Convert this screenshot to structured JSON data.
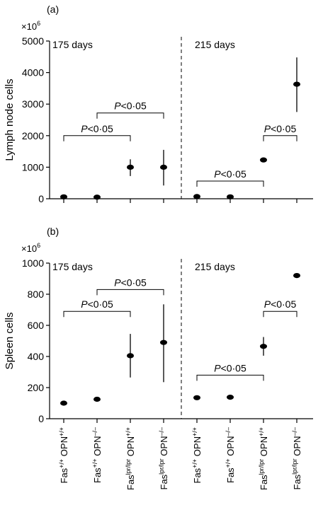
{
  "chart_data": [
    {
      "type": "scatter",
      "panel_label": "(a)",
      "multiplier": "×10",
      "multiplier_exp": "6",
      "ylabel": "Lymph node cells",
      "ylim": [
        0,
        5000
      ],
      "yticks": [
        "0",
        "1000",
        "2000",
        "3000",
        "4000",
        "5000"
      ],
      "ytick_values": [
        0,
        1000,
        2000,
        3000,
        4000,
        5000
      ],
      "groups": [
        {
          "label": "175 days",
          "points": [
            {
              "category": 0,
              "mean": 60,
              "low": 60,
              "high": 60
            },
            {
              "category": 1,
              "mean": 50,
              "low": 50,
              "high": 50
            },
            {
              "category": 2,
              "mean": 1000,
              "low": 720,
              "high": 1250
            },
            {
              "category": 3,
              "mean": 1000,
              "low": 420,
              "high": 1550
            }
          ]
        },
        {
          "label": "215 days",
          "points": [
            {
              "category": 4,
              "mean": 70,
              "low": 70,
              "high": 70
            },
            {
              "category": 5,
              "mean": 60,
              "low": 60,
              "high": 60
            },
            {
              "category": 6,
              "mean": 1230,
              "low": 1180,
              "high": 1290
            },
            {
              "category": 7,
              "mean": 3630,
              "low": 2750,
              "high": 4480
            }
          ]
        }
      ],
      "comparisons": [
        {
          "from": 0,
          "to": 2,
          "level": 2000,
          "label_p": "P",
          "label_rest": "<0·05"
        },
        {
          "from": 1,
          "to": 3,
          "level": 2720,
          "label_p": "P",
          "label_rest": "<0·05"
        },
        {
          "from": 4,
          "to": 6,
          "level": 560,
          "label_p": "P",
          "label_rest": "<0·05"
        },
        {
          "from": 6,
          "to": 7,
          "level": 2000,
          "label_p": "P",
          "label_rest": "<0·05"
        }
      ]
    },
    {
      "type": "scatter",
      "panel_label": "(b)",
      "multiplier": "×10",
      "multiplier_exp": "6",
      "ylabel": "Spleen cells",
      "ylim": [
        0,
        1000
      ],
      "yticks": [
        "0",
        "200",
        "400",
        "600",
        "800",
        "1000"
      ],
      "ytick_values": [
        0,
        200,
        400,
        600,
        800,
        1000
      ],
      "groups": [
        {
          "label": "175 days",
          "points": [
            {
              "category": 0,
              "mean": 100,
              "low": 100,
              "high": 100
            },
            {
              "category": 1,
              "mean": 125,
              "low": 125,
              "high": 125
            },
            {
              "category": 2,
              "mean": 405,
              "low": 265,
              "high": 545
            },
            {
              "category": 3,
              "mean": 490,
              "low": 235,
              "high": 735
            }
          ]
        },
        {
          "label": "215 days",
          "points": [
            {
              "category": 4,
              "mean": 135,
              "low": 135,
              "high": 135
            },
            {
              "category": 5,
              "mean": 138,
              "low": 138,
              "high": 138
            },
            {
              "category": 6,
              "mean": 465,
              "low": 405,
              "high": 525
            },
            {
              "category": 7,
              "mean": 920,
              "low": 910,
              "high": 930
            }
          ]
        }
      ],
      "comparisons": [
        {
          "from": 0,
          "to": 2,
          "level": 690,
          "label_p": "P",
          "label_rest": "<0·05"
        },
        {
          "from": 1,
          "to": 3,
          "level": 830,
          "label_p": "P",
          "label_rest": "<0·05"
        },
        {
          "from": 4,
          "to": 6,
          "level": 280,
          "label_p": "P",
          "label_rest": "<0·05"
        },
        {
          "from": 6,
          "to": 7,
          "level": 690,
          "label_p": "P",
          "label_rest": "<0·05"
        }
      ]
    }
  ],
  "categories": [
    {
      "pre": "Fas",
      "sup1": "+/+",
      "mid": " OPN",
      "sup2": "+/+"
    },
    {
      "pre": "Fas",
      "sup1": "+/+",
      "mid": " OPN",
      "sup2": "–/–"
    },
    {
      "pre": "Fas",
      "sup1": "lpr/lpr",
      "mid": " OPN",
      "sup2": "+/+"
    },
    {
      "pre": "Fas",
      "sup1": "lpr/lpr",
      "mid": " OPN",
      "sup2": "–/–"
    },
    {
      "pre": "Fas",
      "sup1": "+/+",
      "mid": " OPN",
      "sup2": "+/+"
    },
    {
      "pre": "Fas",
      "sup1": "+/+",
      "mid": " OPN",
      "sup2": "–/–"
    },
    {
      "pre": "Fas",
      "sup1": "lpr/lpr",
      "mid": " OPN",
      "sup2": "+/+"
    },
    {
      "pre": "Fas",
      "sup1": "lpr/lpr",
      "mid": " OPN",
      "sup2": "–/–"
    }
  ]
}
